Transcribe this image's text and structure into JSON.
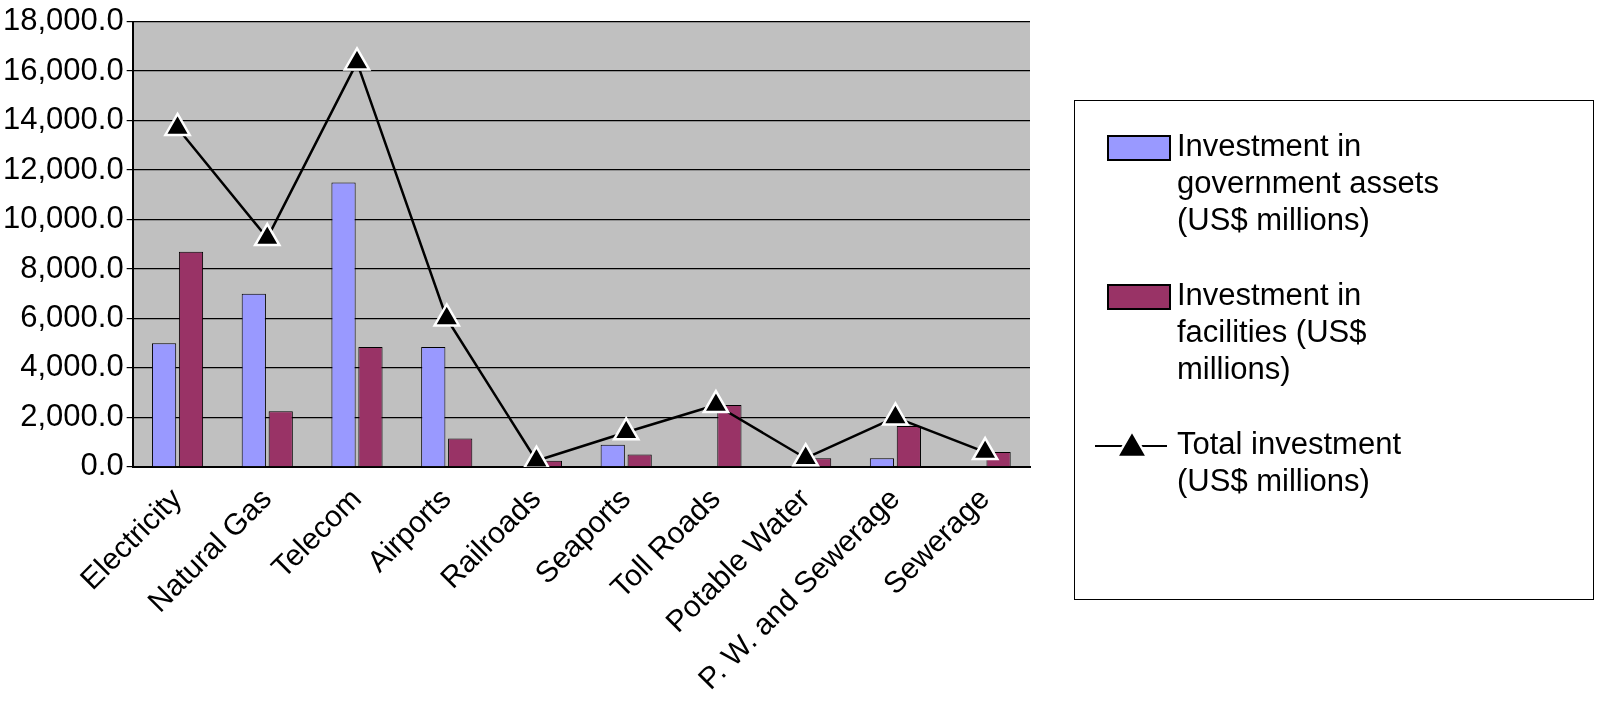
{
  "chart_data": {
    "type": "bar",
    "categories": [
      "Electricity",
      "Natural Gas",
      "Telecom",
      "Airports",
      "Railroads",
      "Seaports",
      "Toll Roads",
      "Potable Water",
      "P. W. and Sewerage",
      "Sewerage"
    ],
    "series": [
      {
        "name": "Investment in government assets (US$ millions)",
        "color": "#9999ff",
        "values": [
          5000,
          7000,
          11500,
          4850,
          0,
          900,
          0,
          0,
          350,
          0
        ]
      },
      {
        "name": "Investment in facilities (US$ millions)",
        "color": "#993366",
        "values": [
          8700,
          2250,
          4850,
          1150,
          250,
          500,
          2500,
          350,
          1650,
          600
        ]
      },
      {
        "name": "Total investment (US$ millions)",
        "type": "line",
        "color": "#000000",
        "values": [
          13700,
          9250,
          16350,
          6000,
          250,
          1400,
          2500,
          350,
          2000,
          600
        ]
      }
    ],
    "ylim": [
      0,
      18000
    ],
    "yticks": [
      {
        "value": 0,
        "label": "0.0"
      },
      {
        "value": 2000,
        "label": "2,000.0"
      },
      {
        "value": 4000,
        "label": "4,000.0"
      },
      {
        "value": 6000,
        "label": "6,000.0"
      },
      {
        "value": 8000,
        "label": "8,000.0"
      },
      {
        "value": 10000,
        "label": "10,000.0"
      },
      {
        "value": 12000,
        "label": "12,000.0"
      },
      {
        "value": 14000,
        "label": "14,000.0"
      },
      {
        "value": 16000,
        "label": "16,000.0"
      },
      {
        "value": 18000,
        "label": "18,000.0"
      }
    ],
    "grid": "y",
    "legend": "right",
    "marker": "triangle"
  }
}
